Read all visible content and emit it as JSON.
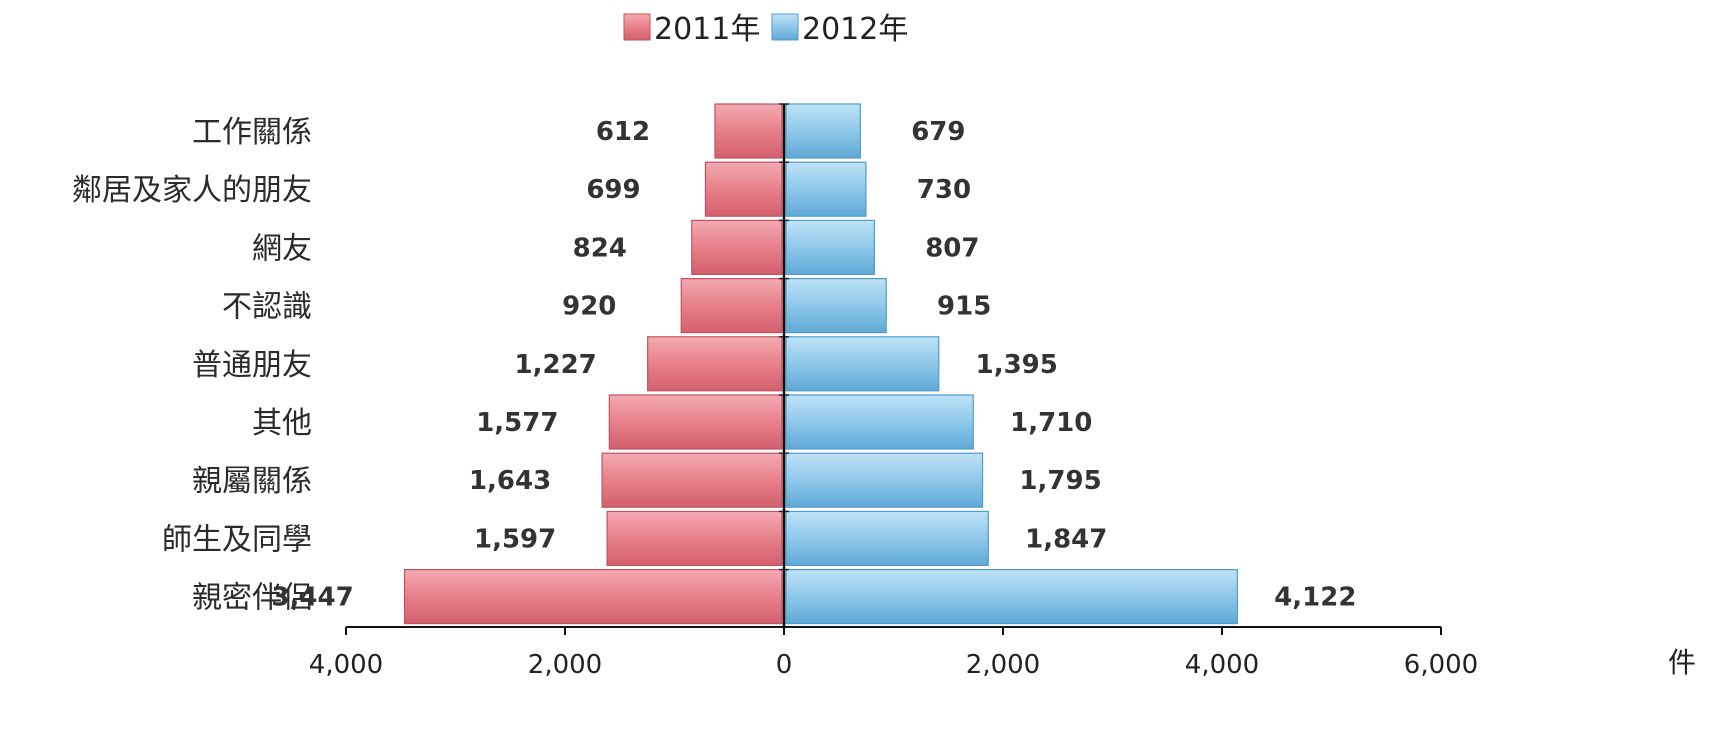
{
  "chart_data": {
    "type": "bar",
    "orientation": "horizontal-diverging",
    "unit": "件",
    "categories": [
      "工作關係",
      "鄰居及家人的朋友",
      "網友",
      "不認識",
      "普通朋友",
      "其他",
      "親屬關係",
      "師生及同學",
      "親密伴侶"
    ],
    "series": [
      {
        "name": "2011年",
        "color": "#e8808a",
        "values": [
          612,
          699,
          824,
          920,
          1227,
          1577,
          1643,
          1597,
          3447
        ],
        "labels": [
          "612",
          "699",
          "824",
          "920",
          "1,227",
          "1,577",
          "1,643",
          "1,597",
          "3,447"
        ]
      },
      {
        "name": "2012年",
        "color": "#8ec8ea",
        "values": [
          679,
          730,
          807,
          915,
          1395,
          1710,
          1795,
          1847,
          4122
        ],
        "labels": [
          "679",
          "730",
          "807",
          "915",
          "1,395",
          "1,710",
          "1,795",
          "1,847",
          "4,122"
        ]
      }
    ],
    "xlim": [
      -4000,
      6000
    ],
    "xticks": [
      -4000,
      -2000,
      0,
      2000,
      4000,
      6000
    ],
    "xtick_labels": [
      "4,000",
      "2,000",
      "0",
      "2,000",
      "4,000",
      "6,000"
    ],
    "legend_position": "top-center",
    "grid": false
  }
}
